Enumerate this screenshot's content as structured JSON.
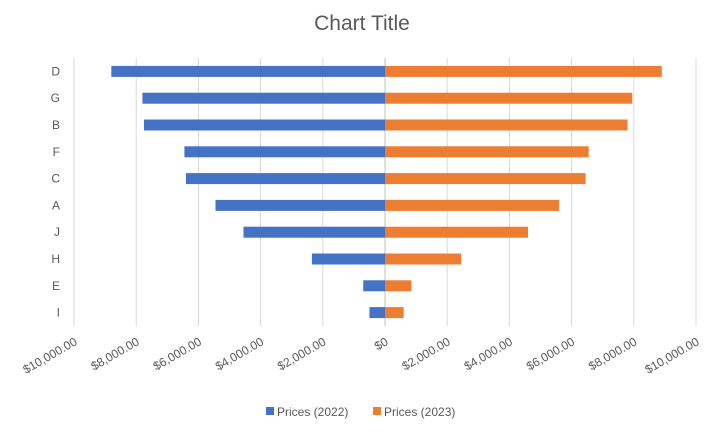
{
  "chart_data": {
    "type": "bar",
    "orientation": "horizontal-diverging",
    "title": "Chart Title",
    "categories": [
      "D",
      "G",
      "B",
      "F",
      "C",
      "A",
      "J",
      "H",
      "E",
      "I"
    ],
    "series": [
      {
        "name": "Prices (2022)",
        "color": "#4472c4",
        "values": [
          -8800,
          -7800,
          -7750,
          -6450,
          -6400,
          -5450,
          -4550,
          -2350,
          -700,
          -500
        ]
      },
      {
        "name": "Prices (2023)",
        "color": "#ed7d31",
        "values": [
          8900,
          7950,
          7800,
          6550,
          6450,
          5600,
          4600,
          2450,
          850,
          600
        ]
      }
    ],
    "xlim": [
      -10000,
      10000
    ],
    "x_ticks": [
      -10000,
      -8000,
      -6000,
      -4000,
      -2000,
      0,
      2000,
      4000,
      6000,
      8000,
      10000
    ],
    "x_tick_labels": [
      "$10,000.00",
      "$8,000.00",
      "$6,000.00",
      "$4,000.00",
      "$2,000.00",
      "$0",
      "$2,000.00",
      "$4,000.00",
      "$6,000.00",
      "$8,000.00",
      "$10,000.00"
    ],
    "grid": true,
    "legend": "bottom"
  }
}
